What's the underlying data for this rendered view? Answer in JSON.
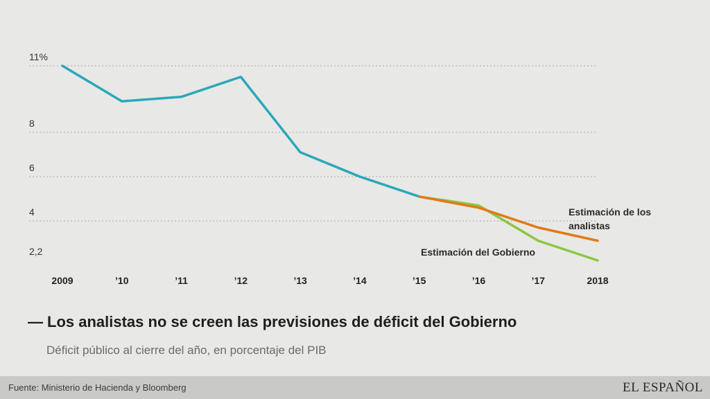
{
  "chart_data": {
    "type": "line",
    "title": "Los analistas no se creen las previsiones de déficit del Gobierno",
    "subtitle": "Déficit público al cierre del año, en porcentaje del PIB",
    "x": [
      2009,
      2010,
      2011,
      2012,
      2013,
      2014,
      2015,
      2016,
      2017,
      2018
    ],
    "x_tick_labels": [
      "2009",
      "’10",
      "’11",
      "’12",
      "’13",
      "’14",
      "’15",
      "’16",
      "’17",
      "2018"
    ],
    "y_ticks": [
      2.2,
      4,
      6,
      8,
      11
    ],
    "y_tick_labels": [
      "2,2",
      "4",
      "6",
      "8",
      "11%"
    ],
    "ylim": [
      2.2,
      11
    ],
    "grid": true,
    "series": [
      {
        "key": "historico",
        "color": "#2aa8b8",
        "x": [
          2009,
          2010,
          2011,
          2012,
          2013,
          2014,
          2015
        ],
        "values": [
          11,
          9.4,
          9.6,
          10.5,
          7.1,
          6.0,
          5.1
        ]
      },
      {
        "name": "Estimación del Gobierno",
        "color": "#8cc63f",
        "x": [
          2015,
          2016,
          2017,
          2018
        ],
        "values": [
          5.1,
          4.7,
          3.1,
          2.2
        ]
      },
      {
        "name": "Estimación de los analistas",
        "color": "#e07b15",
        "x": [
          2015,
          2016,
          2017,
          2018
        ],
        "values": [
          5.1,
          4.6,
          3.7,
          3.1
        ]
      }
    ],
    "annotations": {
      "analistas_line1": "Estimación de los",
      "analistas_line2": "analistas",
      "gobierno": "Estimación del Gobierno"
    }
  },
  "header": {
    "dash": "—",
    "title": "Los analistas no se creen las previsiones de déficit del Gobierno",
    "subtitle": "Déficit público al cierre del año, en porcentaje del PIB"
  },
  "footer": {
    "source": "Fuente: Ministerio de Hacienda y Bloomberg",
    "logo": "EL ESPAÑOL"
  },
  "colors": {
    "background": "#e8e8e7",
    "footer_bg": "#c9c9c8",
    "grid": "#a8a8a8"
  }
}
